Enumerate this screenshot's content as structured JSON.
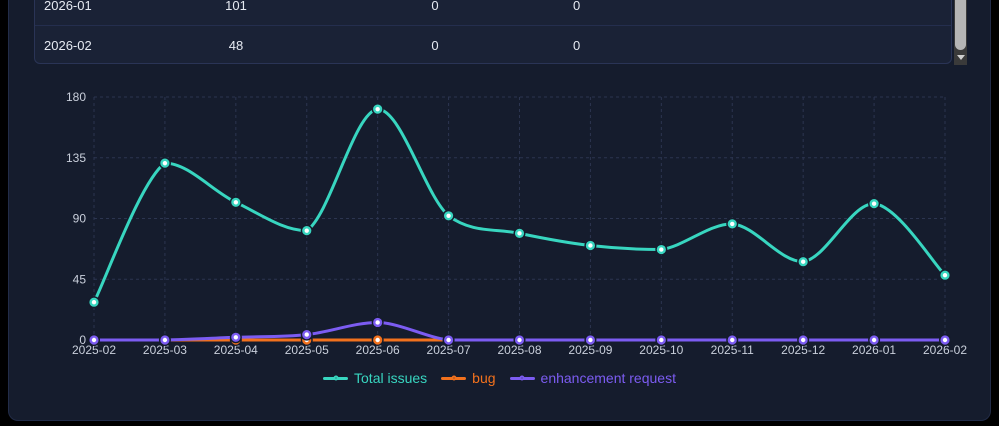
{
  "table": {
    "rows": [
      {
        "month": "2026-01",
        "total": "101",
        "bug": "0",
        "enhancement": "0"
      },
      {
        "month": "2026-02",
        "total": "48",
        "bug": "0",
        "enhancement": "0"
      }
    ]
  },
  "chart_data": {
    "type": "line",
    "smooth": true,
    "grid": true,
    "legend_position": "bottom",
    "x": [
      "2025-02",
      "2025-03",
      "2025-04",
      "2025-05",
      "2025-06",
      "2025-07",
      "2025-08",
      "2025-09",
      "2025-10",
      "2025-11",
      "2025-12",
      "2026-01",
      "2026-02"
    ],
    "series": [
      {
        "name": "Total issues",
        "color": "#38d6c0",
        "values": [
          28,
          131,
          102,
          81,
          171,
          92,
          79,
          70,
          67,
          86,
          58,
          101,
          48
        ]
      },
      {
        "name": "bug",
        "color": "#f2711d",
        "values": [
          0,
          0,
          0,
          0,
          0,
          0,
          0,
          0,
          0,
          0,
          0,
          0,
          0
        ]
      },
      {
        "name": "enhancement request",
        "color": "#7c5cf2",
        "values": [
          0,
          0,
          2,
          4,
          13,
          0,
          0,
          0,
          0,
          0,
          0,
          0,
          0
        ]
      }
    ],
    "ylim": [
      0,
      180
    ],
    "yticks": [
      0,
      45,
      90,
      135,
      180
    ],
    "xlabel": "",
    "ylabel": ""
  },
  "colors": {
    "panel_bg": "#151c2d",
    "table_bg": "#1a2236",
    "text": "#e6eaf2",
    "axis_label": "#c9cfdb",
    "gridline": "#2c3550"
  }
}
